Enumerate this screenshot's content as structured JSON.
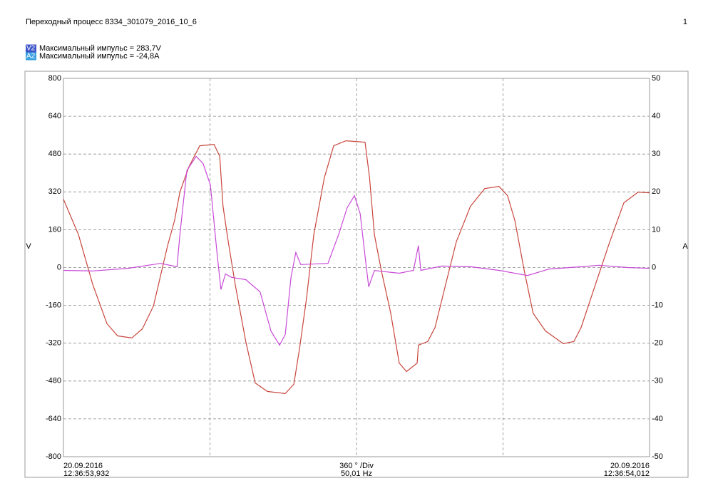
{
  "chart_data": {
    "type": "line",
    "title": "Переходный процесс 8334_301079_2016_10_6",
    "page_number": "1",
    "ylabel": "V",
    "y2label": "A",
    "ylim": [
      -800,
      800
    ],
    "yticks": [
      -800,
      -640,
      -480,
      -320,
      -160,
      0,
      160,
      320,
      480,
      640,
      800
    ],
    "y2lim": [
      -50,
      50
    ],
    "y2ticks": [
      -50,
      -40,
      -30,
      -20,
      -10,
      0,
      10,
      20,
      30,
      40,
      50
    ],
    "xlim": [
      0,
      1440
    ],
    "xticks": [
      360,
      720,
      1080
    ],
    "grid": true,
    "footer": {
      "left": [
        "20.09.2016",
        "12:36:53,932"
      ],
      "center": [
        "360 ° /Div",
        "50,01 Hz"
      ],
      "right": [
        "20.09.2016",
        "12:36:54,012"
      ]
    },
    "series": [
      {
        "name": "V2",
        "label": "Максимальный импульс = 283,7V",
        "color": "#c8463c",
        "badge_color": "#3d55c8",
        "axis": "y",
        "x": [
          0,
          37,
          72,
          107,
          133,
          168,
          194,
          221,
          256,
          273,
          286,
          308,
          335,
          370,
          384,
          392,
          405,
          422,
          448,
          471,
          501,
          545,
          566,
          580,
          597,
          615,
          641,
          664,
          694,
          741,
          752,
          764,
          781,
          804,
          825,
          843,
          869,
          872,
          895,
          913,
          939,
          965,
          1000,
          1035,
          1070,
          1091,
          1109,
          1132,
          1154,
          1184,
          1228,
          1254,
          1272,
          1307,
          1342,
          1377,
          1412,
          1440
        ],
        "values": [
          289,
          139,
          -72,
          -238,
          -289,
          -298,
          -259,
          -163,
          93,
          199,
          319,
          425,
          515,
          521,
          470,
          259,
          108,
          -72,
          -313,
          -488,
          -524,
          -533,
          -494,
          -343,
          -133,
          139,
          380,
          515,
          536,
          530,
          380,
          139,
          -12,
          -193,
          -404,
          -440,
          -404,
          -328,
          -313,
          -253,
          -72,
          108,
          259,
          334,
          343,
          304,
          199,
          -12,
          -193,
          -268,
          -322,
          -313,
          -253,
          -72,
          108,
          274,
          319,
          316
        ]
      },
      {
        "name": "A2",
        "label": "Максимальный импульс = -24,8A",
        "color": "#c84ad8",
        "badge_color": "#3aa0e0",
        "axis": "y2",
        "x": [
          0,
          72,
          159,
          238,
          279,
          286,
          303,
          326,
          343,
          361,
          378,
          387,
          398,
          413,
          448,
          483,
          510,
          531,
          545,
          559,
          571,
          583,
          650,
          676,
          697,
          715,
          729,
          741,
          750,
          764,
          825,
          860,
          872,
          878,
          930,
          1000,
          1070,
          1140,
          1193,
          1272,
          1316,
          1386,
          1440
        ],
        "values": [
          -0.75,
          -0.9,
          -0.2,
          1.1,
          0.2,
          8.7,
          25.6,
          29.4,
          27.5,
          21.8,
          3,
          -5.8,
          -1.7,
          -2.6,
          -3.2,
          -6.4,
          -16.8,
          -20.5,
          -17.7,
          -2.6,
          4,
          0.8,
          1.1,
          8.7,
          15.8,
          19,
          14.3,
          3,
          -5.1,
          -0.8,
          -1.5,
          -0.75,
          5.8,
          -0.75,
          0.4,
          0.2,
          -0.75,
          -2.1,
          -0.4,
          0.2,
          0.6,
          0,
          -0.2
        ]
      }
    ]
  }
}
